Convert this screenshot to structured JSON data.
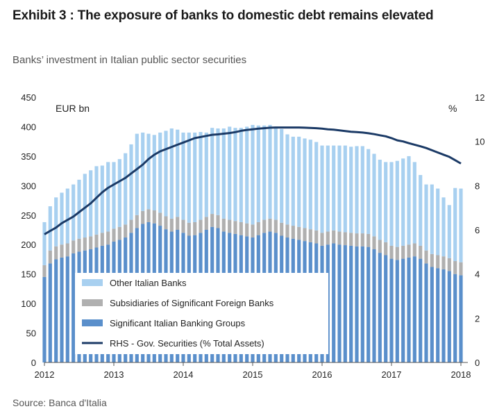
{
  "title": "Exhibit 3 : The exposure of banks to domestic debt remains elevated",
  "subtitle": "Banks’ investment in Italian public sector securities",
  "source": "Source: Banca d'Italia",
  "colors": {
    "other": "#a8d0f0",
    "subsidiaries": "#b0b0b0",
    "significant": "#5a8fcb",
    "rhs_line": "#1b3a66"
  },
  "chart_data": {
    "type": "bar",
    "stacked": true,
    "left_unit": "EUR bn",
    "right_unit": "%",
    "ylim": [
      0,
      450
    ],
    "y2lim": [
      0,
      12
    ],
    "y_ticks": [
      0,
      50,
      100,
      150,
      200,
      250,
      300,
      350,
      400,
      450
    ],
    "y2_ticks": [
      0,
      2,
      4,
      6,
      8,
      10,
      12
    ],
    "x_ticks": [
      "2012",
      "2013",
      "2014",
      "2015",
      "2016",
      "2017",
      "2018"
    ],
    "x_range": [
      2012.0,
      2018.1
    ],
    "grid": false,
    "legend": "bottom-left",
    "x": [
      2012.0,
      2012.083,
      2012.167,
      2012.25,
      2012.333,
      2012.417,
      2012.5,
      2012.583,
      2012.667,
      2012.75,
      2012.833,
      2012.917,
      2013.0,
      2013.083,
      2013.167,
      2013.25,
      2013.333,
      2013.417,
      2013.5,
      2013.583,
      2013.667,
      2013.75,
      2013.833,
      2013.917,
      2014.0,
      2014.083,
      2014.167,
      2014.25,
      2014.333,
      2014.417,
      2014.5,
      2014.583,
      2014.667,
      2014.75,
      2014.833,
      2014.917,
      2015.0,
      2015.083,
      2015.167,
      2015.25,
      2015.333,
      2015.417,
      2015.5,
      2015.583,
      2015.667,
      2015.75,
      2015.833,
      2015.917,
      2016.0,
      2016.083,
      2016.167,
      2016.25,
      2016.333,
      2016.417,
      2016.5,
      2016.583,
      2016.667,
      2016.75,
      2016.833,
      2016.917,
      2017.0,
      2017.083,
      2017.167,
      2017.25,
      2017.333,
      2017.417,
      2017.5,
      2017.583,
      2017.667,
      2017.75,
      2017.833,
      2017.917,
      2018.0
    ],
    "series": [
      {
        "name": "Significant Italian Banking Groups",
        "values": [
          145,
          168,
          175,
          178,
          180,
          185,
          188,
          190,
          192,
          195,
          198,
          200,
          205,
          208,
          212,
          220,
          228,
          235,
          238,
          236,
          232,
          226,
          222,
          225,
          220,
          215,
          216,
          220,
          225,
          230,
          228,
          222,
          220,
          218,
          216,
          214,
          212,
          216,
          220,
          222,
          220,
          215,
          212,
          210,
          208,
          206,
          204,
          202,
          198,
          200,
          202,
          200,
          199,
          198,
          197,
          197,
          196,
          192,
          186,
          182,
          176,
          174,
          176,
          178,
          180,
          176,
          168,
          162,
          160,
          158,
          155,
          150,
          148
        ]
      },
      {
        "name": "Subsidiaries of Significant Foreign Banks",
        "values": [
          20,
          22,
          22,
          22,
          22,
          22,
          22,
          22,
          22,
          22,
          22,
          22,
          22,
          22,
          22,
          22,
          22,
          22,
          22,
          22,
          22,
          22,
          22,
          22,
          22,
          22,
          22,
          22,
          22,
          22,
          22,
          22,
          22,
          22,
          22,
          22,
          22,
          22,
          22,
          22,
          22,
          22,
          22,
          22,
          22,
          22,
          22,
          22,
          22,
          22,
          22,
          22,
          22,
          22,
          22,
          22,
          22,
          22,
          22,
          22,
          22,
          22,
          22,
          22,
          22,
          22,
          22,
          22,
          22,
          22,
          22,
          22,
          22
        ]
      },
      {
        "name": "Other Italian Banks",
        "values": [
          73,
          75,
          83,
          88,
          93,
          95,
          100,
          108,
          112,
          116,
          114,
          118,
          113,
          115,
          121,
          128,
          138,
          133,
          128,
          128,
          136,
          145,
          153,
          148,
          148,
          153,
          152,
          149,
          143,
          146,
          147,
          153,
          158,
          158,
          160,
          164,
          169,
          164,
          160,
          159,
          158,
          159,
          153,
          151,
          153,
          152,
          152,
          150,
          148,
          146,
          144,
          146,
          147,
          146,
          148,
          148,
          144,
          140,
          136,
          136,
          142,
          146,
          148,
          150,
          138,
          120,
          112,
          118,
          113,
          100,
          90,
          124,
          125
        ]
      },
      {
        "name": "RHS - Gov. Securities (% Total Assets)",
        "line": true,
        "values": [
          5.8,
          5.95,
          6.1,
          6.3,
          6.45,
          6.6,
          6.8,
          7.0,
          7.2,
          7.45,
          7.7,
          7.9,
          8.05,
          8.2,
          8.35,
          8.55,
          8.75,
          8.95,
          9.2,
          9.4,
          9.55,
          9.65,
          9.75,
          9.85,
          9.95,
          10.05,
          10.15,
          10.2,
          10.25,
          10.3,
          10.32,
          10.35,
          10.38,
          10.42,
          10.48,
          10.52,
          10.55,
          10.58,
          10.6,
          10.62,
          10.63,
          10.63,
          10.63,
          10.63,
          10.63,
          10.62,
          10.61,
          10.6,
          10.58,
          10.55,
          10.53,
          10.5,
          10.47,
          10.44,
          10.42,
          10.4,
          10.37,
          10.33,
          10.28,
          10.23,
          10.15,
          10.05,
          10.0,
          9.92,
          9.85,
          9.78,
          9.7,
          9.6,
          9.5,
          9.4,
          9.3,
          9.15,
          9.0
        ]
      }
    ]
  }
}
